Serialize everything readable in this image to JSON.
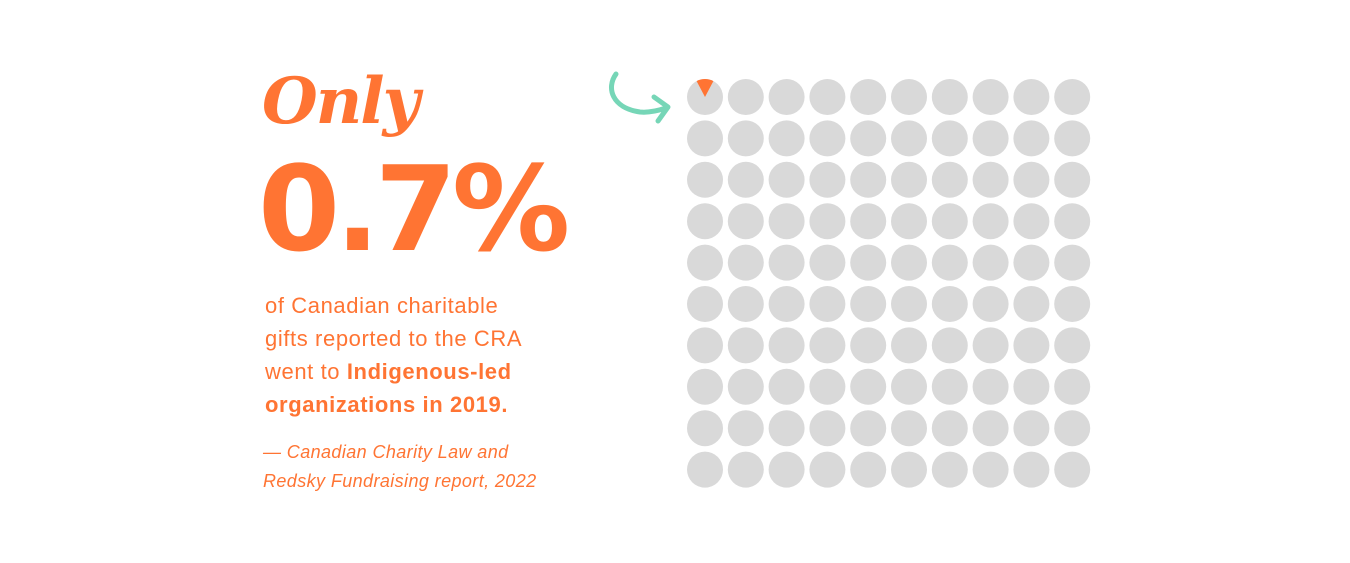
{
  "colors": {
    "accent": "#FF7433",
    "cell_empty": "#D9D9D9",
    "arrow": "#76D6B7"
  },
  "headline": {
    "prefix": "Only",
    "value": "0.7%"
  },
  "body": {
    "line1": "of Canadian charitable",
    "line2": "gifts reported to the CRA",
    "line3_plain": "went to ",
    "line3_bold": "Indigenous-led",
    "line4_bold": "organizations in 2019."
  },
  "citation": {
    "line1": "— Canadian Charity Law and",
    "line2": "Redsky Fundraising report, 2022"
  },
  "icons": {
    "arrow": "curved-arrow-icon"
  },
  "chart_data": {
    "type": "waffle",
    "rows": 10,
    "columns": 10,
    "total": 100,
    "highlight_value": 0.7,
    "highlight_unit": "percent",
    "highlight_cell": 1,
    "highlight_label": "0.7%"
  }
}
